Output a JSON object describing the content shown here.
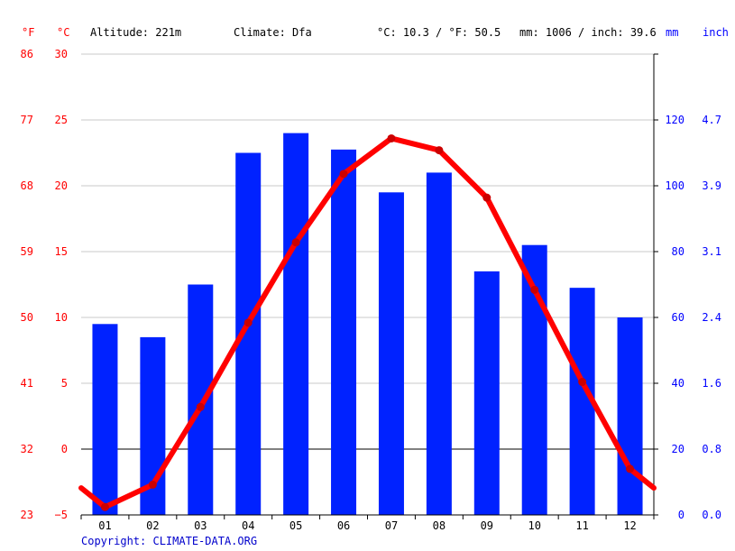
{
  "header": {
    "unit_f": "°F",
    "unit_c": "°C",
    "altitude": "Altitude: 221m",
    "climate": "Climate: Dfa",
    "avg_temp": "°C: 10.3 / °F: 50.5",
    "avg_precip": "mm: 1006 / inch: 39.6",
    "unit_mm": "mm",
    "unit_inch": "inch"
  },
  "copyright": "Copyright: CLIMATE-DATA.ORG",
  "colors": {
    "temperature": "#ff0000",
    "precipitation": "#0022ff",
    "grid": "#c8c8c8"
  },
  "chart_data": {
    "type": "bar",
    "categories": [
      "01",
      "02",
      "03",
      "04",
      "05",
      "06",
      "07",
      "08",
      "09",
      "10",
      "11",
      "12"
    ],
    "series": [
      {
        "type": "bar",
        "axis": "right",
        "values": [
          58,
          54,
          70,
          110,
          116,
          111,
          98,
          104,
          74,
          82,
          69,
          60
        ]
      },
      {
        "type": "line",
        "axis": "left",
        "values": [
          -4.4,
          -2.7,
          3.2,
          9.6,
          15.7,
          20.9,
          23.6,
          22.7,
          19.1,
          12.1,
          5.1,
          -1.5
        ]
      }
    ],
    "left_axis": {
      "celsius_ticks": [
        "30",
        "25",
        "20",
        "15",
        "10",
        "5",
        "0",
        "−5"
      ],
      "fahrenheit_ticks": [
        "86",
        "77",
        "68",
        "59",
        "50",
        "41",
        "32",
        "23"
      ],
      "ylim": [
        -5,
        30
      ]
    },
    "right_axis": {
      "mm_ticks": [
        "120",
        "100",
        "80",
        "60",
        "40",
        "20",
        "0"
      ],
      "inch_ticks": [
        "4.7",
        "3.9",
        "3.1",
        "2.4",
        "1.6",
        "0.8",
        "0.0"
      ],
      "ylim": [
        0,
        140
      ]
    },
    "grid": true
  }
}
